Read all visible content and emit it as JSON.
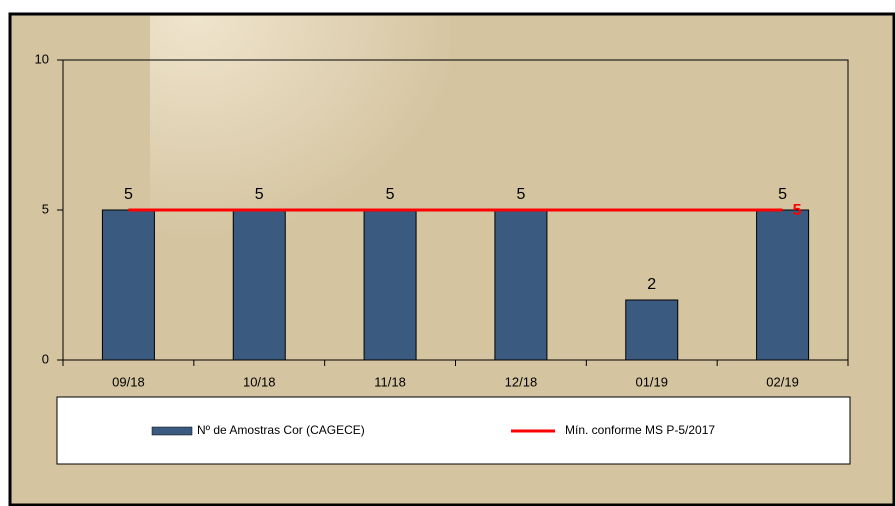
{
  "chart_data": {
    "type": "bar",
    "categories": [
      "09/18",
      "10/18",
      "11/18",
      "12/18",
      "01/19",
      "02/19"
    ],
    "series": [
      {
        "name": "Nº de Amostras Cor (CAGECE)",
        "color": "#3b5a80",
        "values": [
          5,
          5,
          5,
          5,
          2,
          5
        ]
      },
      {
        "name": "Mín. conforme MS P-5/2017",
        "type": "line",
        "color": "#ff0000",
        "values": [
          5,
          5,
          5,
          5,
          5,
          5
        ]
      }
    ],
    "ylim": [
      0,
      10
    ],
    "yticks": [
      0,
      5,
      10
    ],
    "legend": "bottom"
  }
}
